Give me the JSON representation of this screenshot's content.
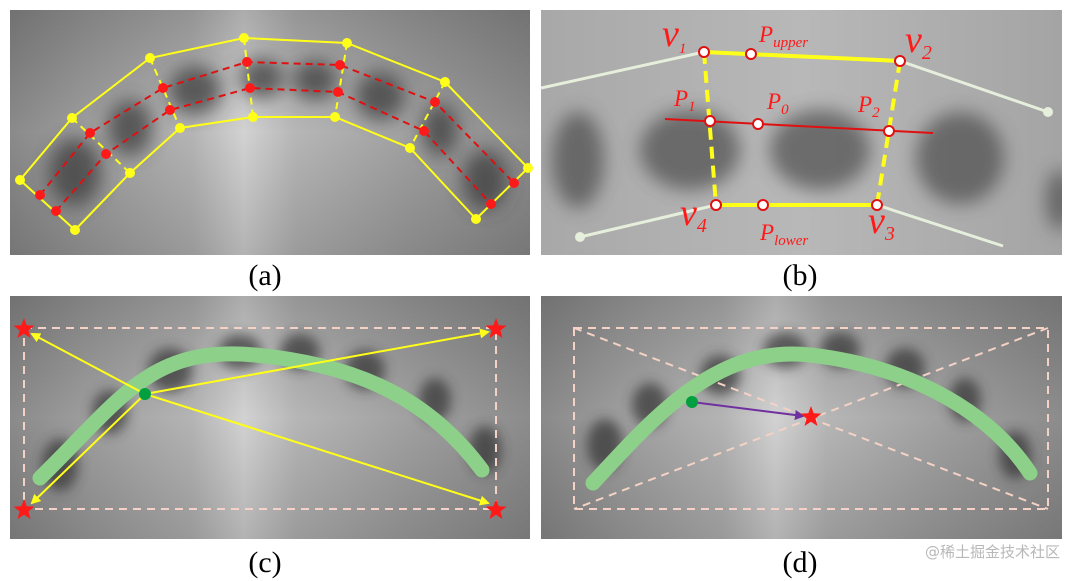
{
  "panels": {
    "a": {
      "caption": "(a)"
    },
    "b": {
      "caption": "(b)",
      "vertices": [
        "v1",
        "v2",
        "v3",
        "v4"
      ],
      "points": {
        "upper": "upper",
        "center": "0",
        "left": "1",
        "right": "2",
        "lower": "lower"
      }
    },
    "c": {
      "caption": "(c)"
    },
    "d": {
      "caption": "(d)"
    }
  },
  "watermark": "@稀土掘金技术社区",
  "colors": {
    "quad": "#ffff1a",
    "center_line": "#e01010",
    "marker_red": "#ff1a1a",
    "curve_green": "#8dd08a",
    "dot_green": "#00a040",
    "arrow_purple": "#7030a0",
    "dashed_box": "#f4d2c6",
    "guide_line": "#e6eedc"
  }
}
